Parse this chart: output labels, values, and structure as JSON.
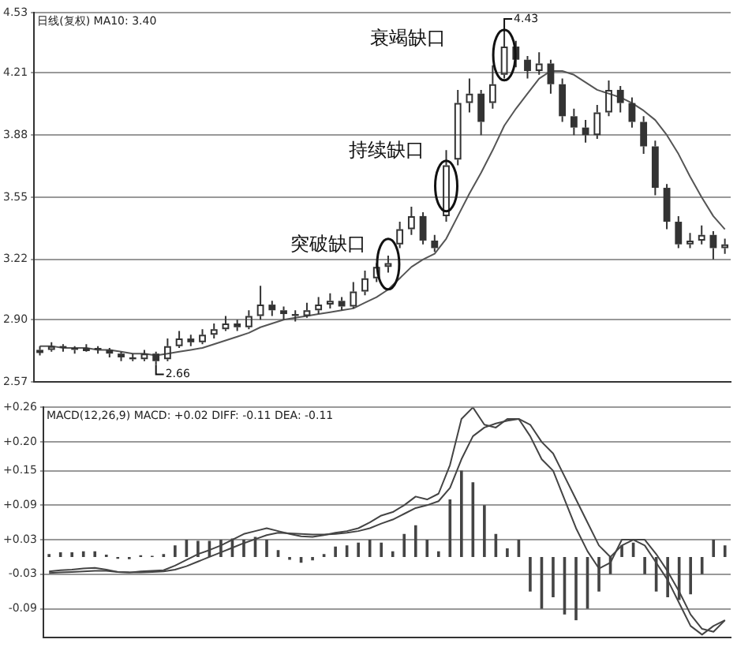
{
  "chart_data": [
    {
      "type": "candlestick",
      "title": "日线(复权) MA10: 3.40",
      "categories": [
        null,
        null,
        null,
        null,
        null,
        null,
        null,
        null,
        null,
        null,
        null,
        null,
        null,
        null,
        null,
        null,
        null,
        null,
        null,
        null,
        null,
        null,
        null,
        null,
        null,
        null,
        null,
        null,
        null,
        null,
        null,
        null,
        null,
        null,
        null,
        null,
        null,
        null,
        null,
        null,
        null,
        null,
        null,
        null,
        null,
        null,
        null,
        null,
        null,
        null,
        null,
        null,
        null,
        null,
        null,
        null,
        null,
        null,
        null,
        null
      ],
      "ohlc": [
        [
          2.73,
          2.76,
          2.71,
          2.74
        ],
        [
          2.74,
          2.78,
          2.73,
          2.76
        ],
        [
          2.76,
          2.77,
          2.73,
          2.75
        ],
        [
          2.75,
          2.76,
          2.72,
          2.74
        ],
        [
          2.74,
          2.77,
          2.73,
          2.75
        ],
        [
          2.75,
          2.76,
          2.72,
          2.74
        ],
        [
          2.74,
          2.75,
          2.7,
          2.72
        ],
        [
          2.72,
          2.73,
          2.68,
          2.7
        ],
        [
          2.7,
          2.72,
          2.68,
          2.69
        ],
        [
          2.69,
          2.74,
          2.68,
          2.72
        ],
        [
          2.72,
          2.73,
          2.66,
          2.68
        ],
        [
          2.69,
          2.8,
          2.68,
          2.76
        ],
        [
          2.76,
          2.84,
          2.75,
          2.8
        ],
        [
          2.8,
          2.82,
          2.76,
          2.78
        ],
        [
          2.78,
          2.85,
          2.77,
          2.82
        ],
        [
          2.82,
          2.88,
          2.8,
          2.85
        ],
        [
          2.85,
          2.92,
          2.84,
          2.88
        ],
        [
          2.88,
          2.9,
          2.84,
          2.86
        ],
        [
          2.86,
          2.95,
          2.85,
          2.92
        ],
        [
          2.92,
          3.08,
          2.9,
          2.98
        ],
        [
          2.98,
          3.0,
          2.92,
          2.95
        ],
        [
          2.95,
          2.97,
          2.9,
          2.93
        ],
        [
          2.93,
          2.95,
          2.89,
          2.92
        ],
        [
          2.92,
          2.99,
          2.91,
          2.95
        ],
        [
          2.95,
          3.02,
          2.93,
          2.98
        ],
        [
          2.98,
          3.04,
          2.96,
          3.0
        ],
        [
          3.0,
          3.02,
          2.95,
          2.97
        ],
        [
          2.97,
          3.1,
          2.96,
          3.05
        ],
        [
          3.05,
          3.16,
          3.03,
          3.12
        ],
        [
          3.12,
          3.2,
          3.1,
          3.18
        ],
        [
          3.18,
          3.24,
          3.15,
          3.2
        ],
        [
          3.3,
          3.42,
          3.28,
          3.38
        ],
        [
          3.38,
          3.5,
          3.35,
          3.45
        ],
        [
          3.45,
          3.47,
          3.3,
          3.32
        ],
        [
          3.32,
          3.35,
          3.26,
          3.28
        ],
        [
          3.45,
          3.8,
          3.42,
          3.72
        ],
        [
          3.75,
          4.12,
          3.72,
          4.05
        ],
        [
          4.05,
          4.18,
          4.0,
          4.1
        ],
        [
          4.1,
          4.12,
          3.88,
          3.95
        ],
        [
          4.05,
          4.25,
          4.02,
          4.15
        ],
        [
          4.2,
          4.43,
          4.18,
          4.35
        ],
        [
          4.35,
          4.38,
          4.24,
          4.28
        ],
        [
          4.28,
          4.3,
          4.18,
          4.22
        ],
        [
          4.22,
          4.32,
          4.2,
          4.26
        ],
        [
          4.26,
          4.28,
          4.1,
          4.15
        ],
        [
          4.15,
          4.18,
          3.95,
          3.98
        ],
        [
          3.98,
          4.02,
          3.88,
          3.92
        ],
        [
          3.92,
          3.96,
          3.84,
          3.88
        ],
        [
          3.88,
          4.04,
          3.86,
          4.0
        ],
        [
          4.0,
          4.17,
          3.98,
          4.12
        ],
        [
          4.12,
          4.14,
          4.0,
          4.05
        ],
        [
          4.05,
          4.08,
          3.92,
          3.95
        ],
        [
          3.95,
          3.98,
          3.78,
          3.82
        ],
        [
          3.82,
          3.85,
          3.56,
          3.6
        ],
        [
          3.6,
          3.62,
          3.38,
          3.42
        ],
        [
          3.42,
          3.45,
          3.28,
          3.3
        ],
        [
          3.3,
          3.36,
          3.28,
          3.32
        ],
        [
          3.32,
          3.4,
          3.3,
          3.35
        ],
        [
          3.35,
          3.37,
          3.22,
          3.28
        ],
        [
          3.28,
          3.33,
          3.25,
          3.3
        ]
      ],
      "series": [
        {
          "type": "line",
          "color": "#555555",
          "values": [
            2.76,
            2.76,
            2.75,
            2.75,
            2.75,
            2.74,
            2.74,
            2.73,
            2.72,
            2.72,
            2.71,
            2.72,
            2.73,
            2.74,
            2.75,
            2.77,
            2.79,
            2.81,
            2.83,
            2.86,
            2.88,
            2.9,
            2.91,
            2.92,
            2.93,
            2.94,
            2.95,
            2.96,
            2.99,
            3.02,
            3.06,
            3.12,
            3.18,
            3.22,
            3.25,
            3.33,
            3.45,
            3.57,
            3.68,
            3.8,
            3.93,
            4.02,
            4.1,
            4.18,
            4.22,
            4.22,
            4.2,
            4.16,
            4.12,
            4.1,
            4.08,
            4.05,
            4.01,
            3.96,
            3.88,
            3.78,
            3.66,
            3.55,
            3.45,
            3.38
          ]
        }
      ],
      "color": "#333333",
      "ylim": [
        2.57,
        4.53
      ],
      "yticks": [
        2.57,
        {
          "value": 2.9,
          "label": "2.90"
        },
        3.22,
        3.55,
        3.88,
        4.21,
        4.53
      ],
      "grid": "y",
      "tick_labels": "y",
      "annotations": [
        "突破缺口",
        "持续缺口",
        "衰竭缺口",
        "2.66",
        "4.43"
      ]
    },
    {
      "type": "bar",
      "title": "MACD(12,26,9) MACD: +0.02 DIFF: -0.11 DEA: -0.11",
      "categories": [
        null,
        null,
        null,
        null,
        null,
        null,
        null,
        null,
        null,
        null,
        null,
        null,
        null,
        null,
        null,
        null,
        null,
        null,
        null,
        null,
        null,
        null,
        null,
        null,
        null,
        null,
        null,
        null,
        null,
        null,
        null,
        null,
        null,
        null,
        null,
        null,
        null,
        null,
        null,
        null,
        null,
        null,
        null,
        null,
        null,
        null,
        null,
        null,
        null,
        null,
        null,
        null,
        null,
        null,
        null,
        null,
        null,
        null,
        null,
        null
      ],
      "series": [
        {
          "type": "bar",
          "color": "#444444",
          "values": [
            0.005,
            0.008,
            0.008,
            0.01,
            0.01,
            0.004,
            -0.003,
            -0.004,
            0.003,
            0.002,
            0.005,
            0.02,
            0.03,
            0.028,
            0.028,
            0.03,
            0.032,
            0.03,
            0.035,
            0.03,
            0.012,
            -0.005,
            -0.01,
            -0.006,
            0.005,
            0.018,
            0.02,
            0.025,
            0.03,
            0.025,
            0.01,
            0.04,
            0.055,
            0.03,
            0.01,
            0.1,
            0.15,
            0.13,
            0.09,
            0.04,
            0.015,
            0.03,
            -0.06,
            -0.09,
            -0.07,
            -0.1,
            -0.11,
            -0.09,
            -0.06,
            -0.03,
            0.02,
            0.025,
            -0.03,
            -0.06,
            -0.07,
            -0.075,
            -0.065,
            -0.03,
            0.03,
            0.02
          ]
        },
        {
          "type": "line",
          "color": "#444444",
          "values": [
            -0.025,
            -0.023,
            -0.022,
            -0.02,
            -0.019,
            -0.022,
            -0.026,
            -0.027,
            -0.025,
            -0.024,
            -0.023,
            -0.015,
            -0.005,
            0.005,
            0.012,
            0.02,
            0.03,
            0.04,
            0.045,
            0.05,
            0.045,
            0.04,
            0.036,
            0.035,
            0.038,
            0.042,
            0.045,
            0.05,
            0.06,
            0.072,
            0.078,
            0.09,
            0.105,
            0.1,
            0.11,
            0.16,
            0.24,
            0.26,
            0.23,
            0.225,
            0.24,
            0.24,
            0.21,
            0.17,
            0.15,
            0.1,
            0.05,
            0.01,
            -0.02,
            -0.01,
            0.03,
            0.03,
            0.02,
            -0.01,
            -0.04,
            -0.08,
            -0.12,
            -0.135,
            -0.12,
            -0.11
          ]
        },
        {
          "type": "line",
          "color": "#444444",
          "values": [
            -0.028,
            -0.027,
            -0.026,
            -0.025,
            -0.024,
            -0.024,
            -0.026,
            -0.027,
            -0.027,
            -0.026,
            -0.025,
            -0.022,
            -0.016,
            -0.008,
            0.0,
            0.008,
            0.016,
            0.024,
            0.031,
            0.038,
            0.042,
            0.041,
            0.04,
            0.039,
            0.039,
            0.04,
            0.042,
            0.045,
            0.05,
            0.058,
            0.065,
            0.075,
            0.085,
            0.09,
            0.097,
            0.12,
            0.17,
            0.21,
            0.225,
            0.232,
            0.237,
            0.24,
            0.23,
            0.2,
            0.18,
            0.14,
            0.1,
            0.06,
            0.02,
            0.0,
            0.02,
            0.03,
            0.03,
            0.005,
            -0.025,
            -0.06,
            -0.1,
            -0.125,
            -0.13,
            -0.11
          ]
        }
      ],
      "ylim": [
        -0.14,
        0.26
      ],
      "yticks": [
        {
          "value": -0.09,
          "label": "-0.09"
        },
        {
          "value": -0.03,
          "label": "-0.03"
        },
        {
          "value": 0.03,
          "label": "+0.03"
        },
        {
          "value": 0.09,
          "label": "+0.09"
        },
        {
          "value": 0.15,
          "label": "+0.15"
        },
        {
          "value": 0.2,
          "label": "+0.20"
        },
        {
          "value": 0.26,
          "label": "+0.26"
        }
      ],
      "grid": "y",
      "tick_labels": "y"
    }
  ]
}
